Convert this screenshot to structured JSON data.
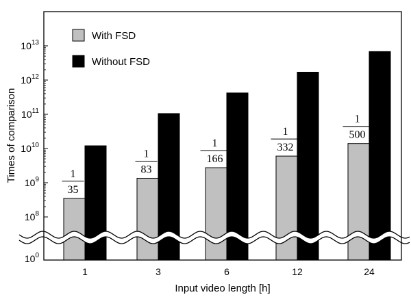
{
  "chart_data": {
    "type": "bar",
    "title": "",
    "xlabel": "Input video length [h]",
    "ylabel": "Times of comparison",
    "y_scale": "log",
    "y_axis_break": true,
    "y_ticks": [
      {
        "base": "10",
        "exp": "0"
      },
      {
        "base": "10",
        "exp": "8"
      },
      {
        "base": "10",
        "exp": "9"
      },
      {
        "base": "10",
        "exp": "10"
      },
      {
        "base": "10",
        "exp": "11"
      },
      {
        "base": "10",
        "exp": "12"
      },
      {
        "base": "10",
        "exp": "13"
      }
    ],
    "ylim": [
      10000000.0,
      10000000000000.0
    ],
    "categories": [
      "1",
      "3",
      "6",
      "12",
      "24"
    ],
    "series": [
      {
        "name": "With FSD",
        "color": "#c0c0c0",
        "values": [
          350000000.0,
          1350000000.0,
          2750000000.0,
          6000000000.0,
          14000000000.0
        ]
      },
      {
        "name": "Without FSD",
        "color": "#000000",
        "values": [
          12000000000.0,
          105000000000.0,
          420000000000.0,
          1700000000000.0,
          6800000000000.0
        ]
      }
    ],
    "ratio_labels": [
      {
        "num": "1",
        "den": "35"
      },
      {
        "num": "1",
        "den": "83"
      },
      {
        "num": "1",
        "den": "166"
      },
      {
        "num": "1",
        "den": "332"
      },
      {
        "num": "1",
        "den": "500"
      }
    ],
    "legend_position": "top-left",
    "grid": false
  }
}
